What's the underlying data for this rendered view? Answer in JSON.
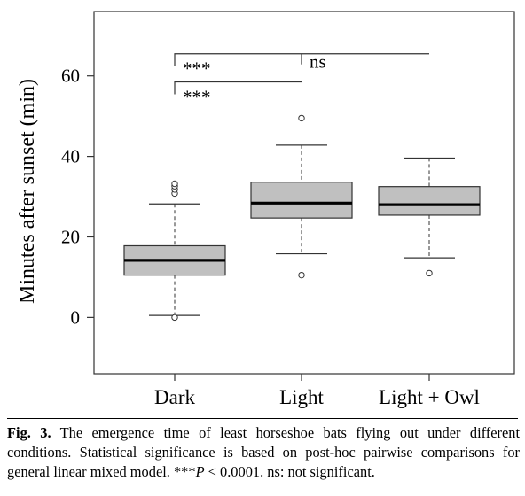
{
  "chart_data": {
    "type": "box",
    "ylabel": "Minutes after sunset (min)",
    "xlabel": "",
    "ylim": [
      -14,
      76
    ],
    "yticks": [
      "0",
      "20",
      "40",
      "60"
    ],
    "ytick_values": [
      0,
      20,
      40,
      60
    ],
    "grid": false,
    "box_color": "#c0c0c0",
    "categories": [
      "Dark",
      "Light",
      "Light + Owl"
    ],
    "boxes": [
      {
        "category": "Dark",
        "whisker_low": 0.5,
        "q1": 10.5,
        "median": 14.2,
        "q3": 17.8,
        "whisker_high": 28.2,
        "outliers": [
          0,
          30.8,
          31.8,
          32.6,
          33.2
        ]
      },
      {
        "category": "Light",
        "whisker_low": 15.8,
        "q1": 24.7,
        "median": 28.4,
        "q3": 33.6,
        "whisker_high": 42.8,
        "outliers": [
          10.5,
          49.5
        ]
      },
      {
        "category": "Light + Owl",
        "whisker_low": 14.8,
        "q1": 25.4,
        "median": 28.0,
        "q3": 32.5,
        "whisker_high": 39.6,
        "outliers": [
          11.0
        ]
      }
    ],
    "significance": [
      {
        "from": "Dark",
        "to": "Light + Owl",
        "label": "***",
        "level": 65.5
      },
      {
        "from": "Light",
        "to": "Light + Owl",
        "label": "ns",
        "level": 65.5
      },
      {
        "from": "Dark",
        "to": "Light",
        "label": "***",
        "level": 58.5
      }
    ]
  },
  "caption": {
    "label": "Fig. 3.",
    "line1_rest": " The emergence time of least horseshoe bats flying out under different",
    "line2": "conditions. Statistical significance is based on post-hoc pairwise comparisons",
    "line3_start": "for general linear mixed model. ***",
    "line3_p": "P",
    "line3_end": " < 0.0001. ns: not significant."
  }
}
